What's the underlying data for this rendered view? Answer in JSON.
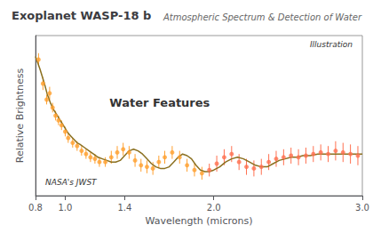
{
  "chart_data": {
    "type": "scatter",
    "title": "Exoplanet WASP-18 b",
    "subtitle": "Atmospheric Spectrum & Detection of Water",
    "xlabel": "Wavelength (microns)",
    "ylabel": "Relative Brightness",
    "annotations": [
      "Water Features",
      "Illustration",
      "NASA's JWST"
    ],
    "xlim": [
      0.8,
      3.0
    ],
    "xticks": [
      0.8,
      {
        "value": 1.0,
        "label": "1.0"
      },
      1.4,
      {
        "value": 2.0,
        "label": "2.0"
      },
      {
        "value": 3.0,
        "label": "3.0"
      }
    ],
    "ylim": [
      0.1,
      1.1
    ],
    "tick_labels": "x",
    "grid": false,
    "series": [
      {
        "type": "scatter",
        "marker": "circle",
        "color": "#FFA030",
        "x": [
          0.82,
          0.85,
          0.875,
          0.895,
          0.915,
          0.935,
          0.955,
          0.975,
          1.0,
          1.02,
          1.05,
          1.08,
          1.11,
          1.14,
          1.17,
          1.2,
          1.23,
          1.27,
          1.31,
          1.35,
          1.39,
          1.43,
          1.47,
          1.51,
          1.55,
          1.59,
          1.63,
          1.67,
          1.72,
          1.77,
          1.82,
          1.87,
          1.92
        ],
        "values": [
          0.95,
          0.8,
          0.7,
          0.74,
          0.65,
          0.6,
          0.57,
          0.54,
          0.5,
          0.46,
          0.43,
          0.41,
          0.38,
          0.36,
          0.34,
          0.33,
          0.31,
          0.31,
          0.34,
          0.37,
          0.39,
          0.37,
          0.32,
          0.29,
          0.28,
          0.27,
          0.31,
          0.34,
          0.37,
          0.34,
          0.29,
          0.26,
          0.24
        ],
        "errors": [
          0.04,
          0.04,
          0.03,
          0.04,
          0.03,
          0.03,
          0.03,
          0.03,
          0.03,
          0.03,
          0.03,
          0.03,
          0.03,
          0.03,
          0.03,
          0.03,
          0.03,
          0.03,
          0.04,
          0.04,
          0.04,
          0.04,
          0.04,
          0.04,
          0.04,
          0.04,
          0.04,
          0.04,
          0.04,
          0.04,
          0.04,
          0.04,
          0.04
        ]
      },
      {
        "type": "scatter",
        "marker": "circle",
        "color": "#FF7050",
        "x": [
          1.97,
          2.02,
          2.07,
          2.12,
          2.17,
          2.22,
          2.27,
          2.32,
          2.37,
          2.42,
          2.47,
          2.52,
          2.57,
          2.62,
          2.67,
          2.72,
          2.77,
          2.82,
          2.87,
          2.92,
          2.97
        ],
        "values": [
          0.26,
          0.3,
          0.34,
          0.36,
          0.31,
          0.28,
          0.27,
          0.28,
          0.31,
          0.33,
          0.34,
          0.35,
          0.34,
          0.35,
          0.36,
          0.37,
          0.36,
          0.38,
          0.37,
          0.36,
          0.35
        ],
        "errors": [
          0.04,
          0.05,
          0.05,
          0.05,
          0.05,
          0.05,
          0.05,
          0.05,
          0.05,
          0.05,
          0.05,
          0.05,
          0.05,
          0.05,
          0.05,
          0.05,
          0.05,
          0.06,
          0.06,
          0.06,
          0.06
        ]
      },
      {
        "type": "line",
        "line_style": "solid",
        "color": "#8B7020",
        "x": [
          0.8,
          0.83,
          0.86,
          0.88,
          0.9,
          0.92,
          0.94,
          0.96,
          0.98,
          1.0,
          1.02,
          1.04,
          1.06,
          1.08,
          1.1,
          1.13,
          1.16,
          1.19,
          1.22,
          1.25,
          1.28,
          1.31,
          1.34,
          1.37,
          1.4,
          1.43,
          1.46,
          1.49,
          1.52,
          1.55,
          1.58,
          1.61,
          1.64,
          1.67,
          1.7,
          1.73,
          1.76,
          1.79,
          1.82,
          1.85,
          1.88,
          1.91,
          1.94,
          1.97,
          2.0,
          2.04,
          2.08,
          2.12,
          2.16,
          2.2,
          2.24,
          2.28,
          2.32,
          2.36,
          2.4,
          2.44,
          2.48,
          2.52,
          2.56,
          2.6,
          2.65,
          2.7,
          2.75,
          2.8,
          2.85,
          2.9,
          2.95,
          3.0
        ],
        "values": [
          0.97,
          0.89,
          0.8,
          0.73,
          0.68,
          0.64,
          0.61,
          0.58,
          0.55,
          0.52,
          0.49,
          0.47,
          0.45,
          0.43,
          0.42,
          0.4,
          0.38,
          0.36,
          0.34,
          0.33,
          0.32,
          0.31,
          0.31,
          0.32,
          0.35,
          0.38,
          0.39,
          0.38,
          0.36,
          0.33,
          0.3,
          0.28,
          0.27,
          0.27,
          0.28,
          0.31,
          0.34,
          0.36,
          0.35,
          0.33,
          0.29,
          0.26,
          0.25,
          0.25,
          0.26,
          0.28,
          0.31,
          0.33,
          0.34,
          0.33,
          0.31,
          0.29,
          0.28,
          0.28,
          0.3,
          0.32,
          0.33,
          0.34,
          0.34,
          0.35,
          0.35,
          0.36,
          0.36,
          0.36,
          0.36,
          0.36,
          0.36,
          0.36
        ]
      }
    ]
  }
}
